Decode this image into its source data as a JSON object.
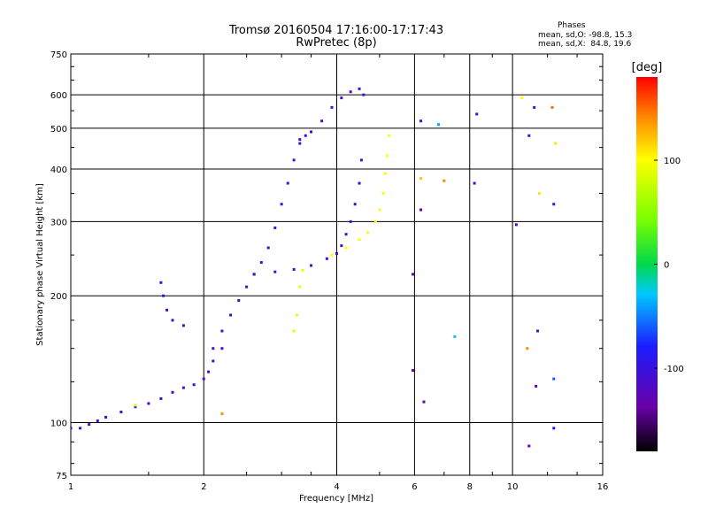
{
  "chart_data": {
    "type": "scatter",
    "title": "Tromsø 20160504 17:16:00-17:17:43",
    "subtitle": "RwPretec (8p)",
    "stats": {
      "heading": "Phases",
      "line1": "mean, sd,O: -98.8, 15.3",
      "line2": "mean, sd,X:  84.8, 19.6"
    },
    "xlabel": "Frequency [MHz]",
    "ylabel": "Stationary phase Virtual Height [km]",
    "xscale": "log",
    "yscale": "log",
    "xlim": [
      1,
      16
    ],
    "ylim": [
      75,
      750
    ],
    "xticks": [
      1,
      2,
      4,
      6,
      8,
      10,
      16
    ],
    "xtick_labels": [
      "1",
      "2",
      "4",
      "6",
      "8",
      "10",
      "16"
    ],
    "yticks": [
      75,
      100,
      200,
      300,
      400,
      500,
      600,
      750
    ],
    "ytick_labels": [
      "75",
      "100",
      "200",
      "300",
      "400",
      "500",
      "600",
      "750"
    ],
    "grid": true,
    "colorbar": {
      "label": "[deg]",
      "range": [
        -180,
        180
      ],
      "ticks": [
        100,
        0,
        -100
      ],
      "tick_labels": [
        "100",
        "0",
        "-100"
      ]
    },
    "traces": [
      {
        "name": "",
        "phase": -110,
        "points": [
          [
            1.0,
            97
          ],
          [
            1.05,
            97
          ],
          [
            1.1,
            99
          ],
          [
            1.15,
            101
          ],
          [
            1.2,
            103
          ],
          [
            1.3,
            106
          ],
          [
            1.4,
            109
          ],
          [
            1.5,
            111
          ],
          [
            1.6,
            114
          ],
          [
            1.7,
            118
          ],
          [
            1.8,
            121
          ],
          [
            1.9,
            123
          ],
          [
            2.0,
            127
          ],
          [
            2.05,
            132
          ],
          [
            2.1,
            140
          ],
          [
            2.2,
            150
          ]
        ]
      },
      {
        "name": "",
        "phase": -110,
        "points": [
          [
            2.1,
            150
          ],
          [
            2.2,
            165
          ],
          [
            2.3,
            180
          ],
          [
            2.4,
            195
          ],
          [
            2.5,
            210
          ],
          [
            2.6,
            225
          ],
          [
            2.7,
            240
          ],
          [
            2.8,
            260
          ],
          [
            2.9,
            290
          ],
          [
            3.0,
            330
          ],
          [
            3.1,
            370
          ],
          [
            3.2,
            420
          ],
          [
            3.3,
            460
          ],
          [
            3.4,
            480
          ]
        ]
      },
      {
        "name": "",
        "phase": -110,
        "points": [
          [
            2.6,
            225
          ],
          [
            2.9,
            228
          ],
          [
            3.2,
            231
          ],
          [
            3.5,
            236
          ],
          [
            3.8,
            245
          ],
          [
            4.0,
            252
          ],
          [
            4.1,
            263
          ],
          [
            4.2,
            280
          ],
          [
            4.3,
            300
          ],
          [
            4.4,
            330
          ],
          [
            4.5,
            370
          ],
          [
            4.55,
            420
          ]
        ]
      },
      {
        "name": "",
        "phase": -110,
        "points": [
          [
            3.3,
            470
          ],
          [
            3.5,
            490
          ],
          [
            3.7,
            520
          ],
          [
            3.9,
            560
          ],
          [
            4.1,
            590
          ],
          [
            4.3,
            610
          ],
          [
            4.5,
            620
          ]
        ]
      },
      {
        "name": "",
        "phase": 100,
        "points": [
          [
            3.9,
            250
          ],
          [
            4.2,
            260
          ],
          [
            4.5,
            272
          ],
          [
            4.7,
            283
          ],
          [
            4.9,
            300
          ],
          [
            5.0,
            320
          ],
          [
            5.1,
            350
          ],
          [
            5.15,
            390
          ],
          [
            5.2,
            430
          ],
          [
            5.25,
            480
          ]
        ]
      },
      {
        "name": "",
        "phase": -110,
        "points": [
          [
            1.6,
            215
          ],
          [
            1.62,
            200
          ],
          [
            1.65,
            185
          ],
          [
            1.7,
            175
          ],
          [
            1.8,
            170
          ]
        ]
      },
      {
        "name": "",
        "phase": 90,
        "points": [
          [
            3.2,
            165
          ],
          [
            3.25,
            180
          ],
          [
            3.3,
            210
          ],
          [
            3.35,
            230
          ]
        ]
      }
    ],
    "scatter_points": [
      {
        "x": 6.2,
        "y": 520,
        "phase": -80
      },
      {
        "x": 6.8,
        "y": 510,
        "phase": -40
      },
      {
        "x": 6.2,
        "y": 380,
        "phase": 120
      },
      {
        "x": 7.0,
        "y": 375,
        "phase": 140
      },
      {
        "x": 8.2,
        "y": 370,
        "phase": -120
      },
      {
        "x": 8.3,
        "y": 540,
        "phase": -110
      },
      {
        "x": 10.5,
        "y": 590,
        "phase": 100
      },
      {
        "x": 10.9,
        "y": 480,
        "phase": -110
      },
      {
        "x": 11.5,
        "y": 350,
        "phase": 110
      },
      {
        "x": 12.4,
        "y": 330,
        "phase": -100
      },
      {
        "x": 12.5,
        "y": 460,
        "phase": 110
      },
      {
        "x": 12.3,
        "y": 560,
        "phase": 150
      },
      {
        "x": 11.2,
        "y": 560,
        "phase": -110
      },
      {
        "x": 6.2,
        "y": 320,
        "phase": -130
      },
      {
        "x": 7.4,
        "y": 160,
        "phase": -30
      },
      {
        "x": 10.8,
        "y": 150,
        "phase": 140
      },
      {
        "x": 11.4,
        "y": 165,
        "phase": -120
      },
      {
        "x": 12.4,
        "y": 127,
        "phase": -60
      },
      {
        "x": 11.3,
        "y": 122,
        "phase": -120
      },
      {
        "x": 12.4,
        "y": 97,
        "phase": -80
      },
      {
        "x": 10.9,
        "y": 88,
        "phase": -130
      },
      {
        "x": 6.3,
        "y": 112,
        "phase": -130
      },
      {
        "x": 5.95,
        "y": 133,
        "phase": -140
      },
      {
        "x": 5.95,
        "y": 225,
        "phase": -140
      },
      {
        "x": 10.2,
        "y": 295,
        "phase": -120
      },
      {
        "x": 4.6,
        "y": 600,
        "phase": -100
      },
      {
        "x": 2.2,
        "y": 105,
        "phase": 140
      },
      {
        "x": 1.4,
        "y": 110,
        "phase": 80
      }
    ]
  }
}
